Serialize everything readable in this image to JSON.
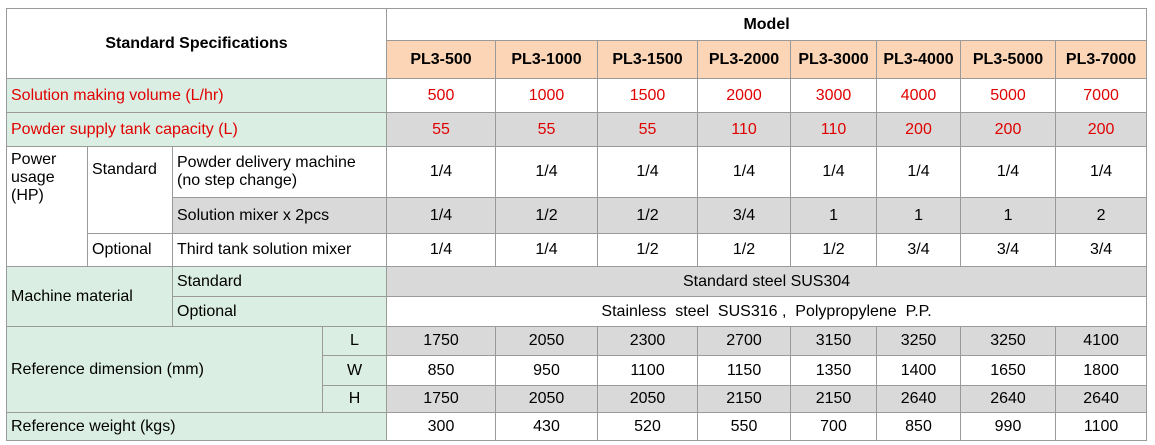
{
  "table": {
    "corner": "Standard Specifications",
    "group": "Model",
    "models": [
      "PL3-500",
      "PL3-1000",
      "PL3-1500",
      "PL3-2000",
      "PL3-3000",
      "PL3-4000",
      "PL3-5000",
      "PL3-7000"
    ],
    "solution_volume": {
      "label": "Solution making volume (L/hr)",
      "values": [
        500,
        1000,
        1500,
        2000,
        3000,
        4000,
        5000,
        7000
      ]
    },
    "tank_capacity": {
      "label": "Powder supply tank capacity (L)",
      "values": [
        55,
        55,
        55,
        110,
        110,
        200,
        200,
        200
      ]
    },
    "power": {
      "label": "Power usage (HP)",
      "standard": "Standard",
      "optional": "Optional",
      "rows": [
        {
          "label": "Powder delivery machine (no step change)",
          "values": [
            "1/4",
            "1/4",
            "1/4",
            "1/4",
            "1/4",
            "1/4",
            "1/4",
            "1/4"
          ]
        },
        {
          "label": "Solution mixer x 2pcs",
          "values": [
            "1/4",
            "1/2",
            "1/2",
            "3/4",
            "1",
            "1",
            "1",
            "2"
          ]
        },
        {
          "label": "Third tank solution mixer",
          "values": [
            "1/4",
            "1/4",
            "1/2",
            "1/2",
            "1/2",
            "3/4",
            "3/4",
            "3/4"
          ]
        }
      ]
    },
    "material": {
      "label": "Machine material",
      "standard_label": "Standard",
      "standard_value": "Standard steel SUS304",
      "optional_label": "Optional",
      "optional_value": "Stainless  steel  SUS316 ,  Polypropylene  P.P."
    },
    "dimension": {
      "label": "Reference dimension (mm)",
      "rows": [
        {
          "axis": "L",
          "values": [
            1750,
            2050,
            2300,
            2700,
            3150,
            3250,
            3250,
            4100
          ]
        },
        {
          "axis": "W",
          "values": [
            850,
            950,
            1100,
            1150,
            1350,
            1400,
            1650,
            1800
          ]
        },
        {
          "axis": "H",
          "values": [
            1750,
            2050,
            2050,
            2150,
            2150,
            2640,
            2640,
            2640
          ]
        }
      ]
    },
    "weight": {
      "label": "Reference weight (kgs)",
      "values": [
        300,
        430,
        520,
        550,
        700,
        850,
        990,
        1100
      ]
    }
  }
}
